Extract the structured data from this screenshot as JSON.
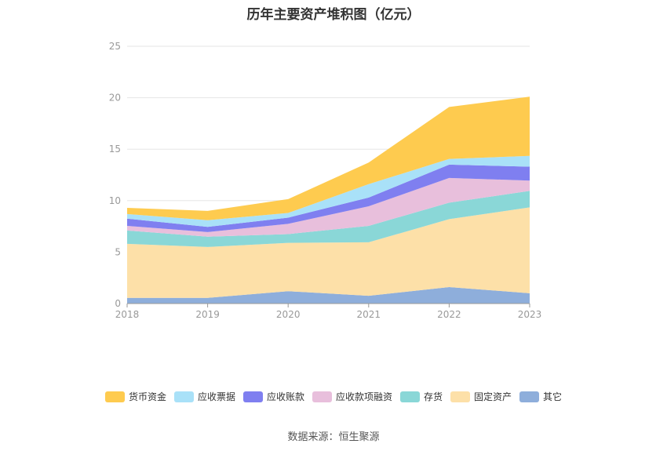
{
  "chart_data": {
    "type": "area",
    "stacked": true,
    "title": "历年主要资产堆积图（亿元）",
    "x": [
      "2018",
      "2019",
      "2020",
      "2021",
      "2022",
      "2023"
    ],
    "ylim": [
      0,
      25
    ],
    "yticks": [
      0,
      5,
      10,
      15,
      20,
      25
    ],
    "grid": true,
    "legend_position": "bottom",
    "series": [
      {
        "name": "其它",
        "color": "#8eaedb",
        "values": [
          0.55,
          0.55,
          1.2,
          0.75,
          1.6,
          1.0
        ]
      },
      {
        "name": "固定资产",
        "color": "#fde0a8",
        "values": [
          5.25,
          4.95,
          4.7,
          5.2,
          6.6,
          8.35
        ]
      },
      {
        "name": "存货",
        "color": "#8ad7d7",
        "values": [
          1.3,
          1.0,
          0.85,
          1.6,
          1.6,
          1.6
        ]
      },
      {
        "name": "应收款项融资",
        "color": "#e8bfdc",
        "values": [
          0.45,
          0.45,
          1.0,
          1.9,
          2.4,
          1.0
        ]
      },
      {
        "name": "应收账款",
        "color": "#7f7ff0",
        "values": [
          0.7,
          0.5,
          0.6,
          0.85,
          1.3,
          1.35
        ]
      },
      {
        "name": "应收票据",
        "color": "#a9e1f8",
        "values": [
          0.45,
          0.65,
          0.45,
          1.3,
          0.55,
          1.05
        ]
      },
      {
        "name": "货币资金",
        "color": "#fecb4f",
        "values": [
          0.6,
          0.9,
          1.35,
          2.1,
          5.05,
          5.75
        ]
      }
    ],
    "legend_order": [
      "货币资金",
      "应收票据",
      "应收账款",
      "应收款项融资",
      "存货",
      "固定资产",
      "其它"
    ]
  },
  "source": "数据来源：恒生聚源"
}
